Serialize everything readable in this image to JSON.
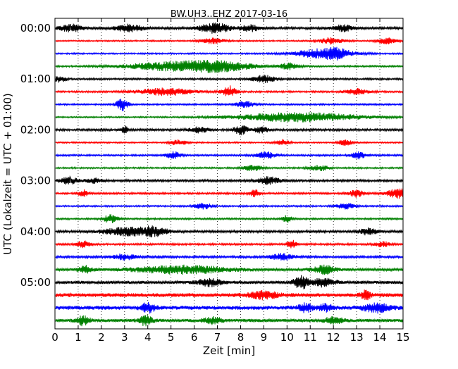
{
  "chart_data": {
    "type": "line",
    "title": "BW.UH3..EHZ 2017-03-16",
    "xlabel": "Zeit  [min]",
    "ylabel": "UTC (Lokalzeit = UTC + 01:00)",
    "xlim": [
      0,
      15
    ],
    "x_ticks": [
      "0",
      "1",
      "2",
      "3",
      "4",
      "5",
      "6",
      "7",
      "8",
      "9",
      "10",
      "11",
      "12",
      "13",
      "14",
      "15"
    ],
    "y_ticks": [
      "00:00",
      "01:00",
      "02:00",
      "03:00",
      "04:00",
      "05:00"
    ],
    "grid": "vertical dotted lines at each minute",
    "legend": "none",
    "trace_interval_minutes": 15,
    "color_cycle": [
      "#000000",
      "#ff0000",
      "#0000ff",
      "#008000"
    ],
    "traces": [
      {
        "start": "00:00",
        "color": "#000000",
        "noise": 0.32,
        "events": [
          [
            0.7,
            1.0,
            0.5
          ],
          [
            3.2,
            1.0,
            0.6
          ],
          [
            6.9,
            1.3,
            0.7
          ],
          [
            8.4,
            0.9,
            0.4
          ],
          [
            12.4,
            0.9,
            0.4
          ]
        ]
      },
      {
        "start": "00:15",
        "color": "#ff0000",
        "noise": 0.2,
        "events": [
          [
            6.8,
            0.8,
            0.5
          ],
          [
            11.9,
            0.9,
            0.5
          ],
          [
            14.3,
            0.9,
            0.4
          ]
        ]
      },
      {
        "start": "00:30",
        "color": "#0000ff",
        "noise": 0.2,
        "events": [
          [
            11.6,
            1.4,
            1.2
          ],
          [
            12.2,
            0.8,
            0.4
          ]
        ]
      },
      {
        "start": "00:45",
        "color": "#008000",
        "noise": 0.22,
        "events": [
          [
            5.1,
            1.2,
            2.0
          ],
          [
            7.2,
            1.2,
            1.4
          ],
          [
            10.1,
            0.9,
            0.4
          ]
        ]
      },
      {
        "start": "01:00",
        "color": "#000000",
        "noise": 0.25,
        "events": [
          [
            0.2,
            0.8,
            0.3
          ],
          [
            9.0,
            1.0,
            0.5
          ]
        ]
      },
      {
        "start": "01:15",
        "color": "#ff0000",
        "noise": 0.24,
        "events": [
          [
            4.8,
            1.0,
            1.2
          ],
          [
            7.5,
            1.6,
            0.3
          ],
          [
            13.0,
            0.8,
            0.5
          ]
        ]
      },
      {
        "start": "01:30",
        "color": "#0000ff",
        "noise": 0.22,
        "events": [
          [
            2.9,
            1.8,
            0.25
          ],
          [
            8.2,
            0.9,
            0.4
          ]
        ]
      },
      {
        "start": "01:45",
        "color": "#008000",
        "noise": 0.2,
        "events": [
          [
            10.5,
            1.3,
            2.6
          ]
        ]
      },
      {
        "start": "02:00",
        "color": "#000000",
        "noise": 0.3,
        "events": [
          [
            3.0,
            1.0,
            0.15
          ],
          [
            6.2,
            0.8,
            0.4
          ],
          [
            8.0,
            1.3,
            0.3
          ],
          [
            8.9,
            0.9,
            0.3
          ]
        ]
      },
      {
        "start": "02:15",
        "color": "#ff0000",
        "noise": 0.2,
        "events": [
          [
            5.3,
            0.7,
            0.4
          ],
          [
            9.8,
            0.8,
            0.3
          ],
          [
            12.5,
            0.8,
            0.3
          ]
        ]
      },
      {
        "start": "02:30",
        "color": "#0000ff",
        "noise": 0.24,
        "events": [
          [
            5.1,
            1.0,
            0.3
          ],
          [
            9.1,
            0.9,
            0.4
          ],
          [
            13.1,
            1.0,
            0.3
          ]
        ]
      },
      {
        "start": "02:45",
        "color": "#008000",
        "noise": 0.22,
        "events": [
          [
            8.5,
            0.8,
            0.4
          ],
          [
            11.4,
            0.8,
            0.4
          ]
        ]
      },
      {
        "start": "03:00",
        "color": "#000000",
        "noise": 0.3,
        "events": [
          [
            0.6,
            1.0,
            0.4
          ],
          [
            1.7,
            0.8,
            0.3
          ],
          [
            9.2,
            1.0,
            0.5
          ]
        ]
      },
      {
        "start": "03:15",
        "color": "#ff0000",
        "noise": 0.26,
        "events": [
          [
            1.2,
            1.0,
            0.2
          ],
          [
            8.6,
            1.1,
            0.2
          ],
          [
            13.0,
            1.1,
            0.3
          ],
          [
            14.8,
            1.3,
            0.5
          ]
        ]
      },
      {
        "start": "03:30",
        "color": "#0000ff",
        "noise": 0.22,
        "events": [
          [
            6.4,
            0.8,
            0.4
          ],
          [
            12.5,
            0.8,
            0.4
          ]
        ]
      },
      {
        "start": "03:45",
        "color": "#008000",
        "noise": 0.24,
        "events": [
          [
            2.4,
            1.2,
            0.3
          ],
          [
            10.0,
            1.0,
            0.2
          ]
        ]
      },
      {
        "start": "04:00",
        "color": "#000000",
        "noise": 0.32,
        "events": [
          [
            3.1,
            1.2,
            1.0
          ],
          [
            4.3,
            1.1,
            0.6
          ],
          [
            13.5,
            0.9,
            0.4
          ]
        ]
      },
      {
        "start": "04:15",
        "color": "#ff0000",
        "noise": 0.26,
        "events": [
          [
            1.2,
            0.9,
            0.3
          ],
          [
            10.2,
            1.2,
            0.2
          ],
          [
            14.1,
            0.8,
            0.3
          ]
        ]
      },
      {
        "start": "04:30",
        "color": "#0000ff",
        "noise": 0.3,
        "events": [
          [
            3.0,
            0.8,
            0.5
          ],
          [
            9.8,
            0.9,
            0.5
          ]
        ]
      },
      {
        "start": "04:45",
        "color": "#008000",
        "noise": 0.36,
        "events": [
          [
            1.3,
            1.0,
            0.3
          ],
          [
            5.5,
            1.1,
            2.0
          ],
          [
            11.6,
            1.1,
            0.5
          ]
        ]
      },
      {
        "start": "05:00",
        "color": "#000000",
        "noise": 0.45,
        "events": [
          [
            6.7,
            1.0,
            0.5
          ],
          [
            10.6,
            1.8,
            0.3
          ],
          [
            11.6,
            1.1,
            0.5
          ]
        ]
      },
      {
        "start": "05:15",
        "color": "#ff0000",
        "noise": 0.55,
        "events": [
          [
            13.4,
            1.2,
            0.2
          ],
          [
            9.0,
            1.0,
            0.6
          ]
        ]
      },
      {
        "start": "05:30",
        "color": "#0000ff",
        "noise": 0.55,
        "events": [
          [
            4.0,
            1.2,
            0.3
          ],
          [
            10.8,
            1.1,
            0.3
          ],
          [
            11.7,
            1.0,
            0.3
          ],
          [
            13.9,
            1.1,
            0.6
          ]
        ]
      },
      {
        "start": "05:45",
        "color": "#008000",
        "noise": 0.45,
        "events": [
          [
            1.2,
            1.2,
            0.3
          ],
          [
            3.9,
            1.3,
            0.3
          ],
          [
            6.8,
            0.9,
            0.4
          ],
          [
            12.0,
            0.9,
            0.4
          ]
        ]
      }
    ]
  }
}
